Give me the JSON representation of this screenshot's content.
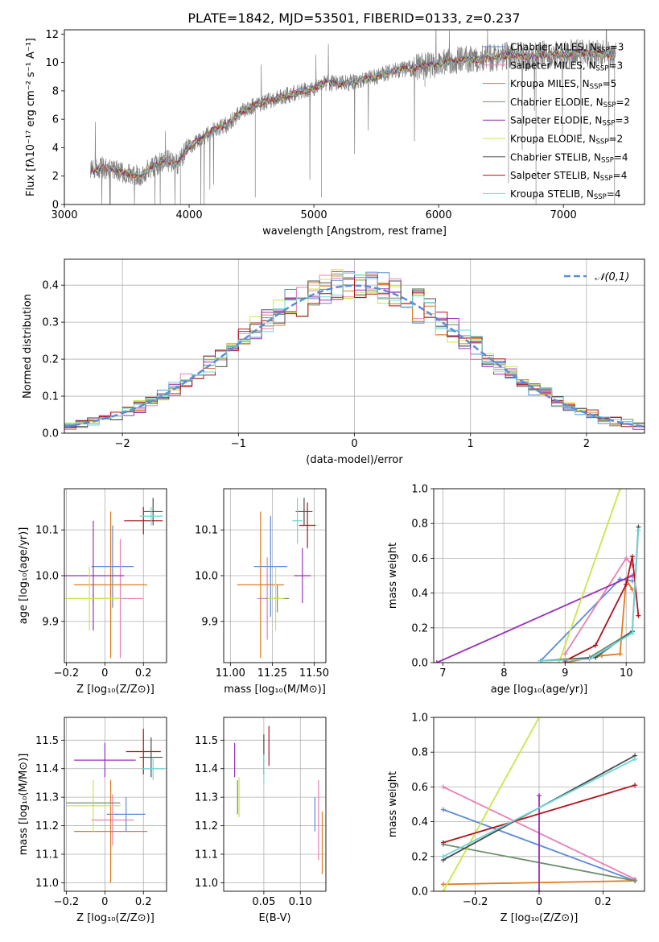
{
  "title": "PLATE=1842, MJD=53501, FIBERID=0133, z=0.237",
  "colors": {
    "chabrier_miles": "#5b8bd9",
    "salpeter_miles": "#e87fb4",
    "kroupa_miles": "#e07a1f",
    "chabrier_elodie": "#6f8f6f",
    "salpeter_elodie": "#9b30b8",
    "kroupa_elodie": "#c9e64a",
    "chabrier_stelib": "#4d4d4d",
    "salpeter_stelib": "#b0141d",
    "kroupa_stelib": "#6fd6d6",
    "data": "#808080",
    "normal": "#5b8bd9",
    "grid": "#b0b0b0"
  },
  "legend_entries": [
    {
      "label": "Chabrier MILES, N",
      "sub": "SSP",
      "suffix": "=3",
      "color_key": "chabrier_miles"
    },
    {
      "label": "Salpeter MILES, N",
      "sub": "SSP",
      "suffix": "=3",
      "color_key": "salpeter_miles"
    },
    {
      "label": "Kroupa MILES, N",
      "sub": "SSP",
      "suffix": "=5",
      "color_key": "kroupa_miles"
    },
    {
      "label": "Chabrier ELODIE, N",
      "sub": "SSP",
      "suffix": "=2",
      "color_key": "chabrier_elodie"
    },
    {
      "label": "Salpeter ELODIE, N",
      "sub": "SSP",
      "suffix": "=3",
      "color_key": "salpeter_elodie"
    },
    {
      "label": "Kroupa ELODIE, N",
      "sub": "SSP",
      "suffix": "=2",
      "color_key": "kroupa_elodie"
    },
    {
      "label": "Chabrier STELIB, N",
      "sub": "SSP",
      "suffix": "=4",
      "color_key": "chabrier_stelib"
    },
    {
      "label": "Salpeter STELIB, N",
      "sub": "SSP",
      "suffix": "=4",
      "color_key": "salpeter_stelib"
    },
    {
      "label": "Kroupa STELIB, N",
      "sub": "SSP",
      "suffix": "=4",
      "color_key": "kroupa_stelib"
    }
  ],
  "chart_data": [
    {
      "id": "spectrum",
      "type": "line",
      "xlabel": "wavelength [Angstrom, rest frame]",
      "ylabel": "Flux [fλ10⁻¹⁷ erg cm⁻² s⁻¹ A⁻¹]",
      "xlim": [
        3000,
        7650
      ],
      "ylim": [
        0,
        12.3
      ],
      "xticks": [
        3000,
        4000,
        5000,
        6000,
        7000
      ],
      "yticks": [
        0,
        2,
        4,
        6,
        8,
        10,
        12
      ],
      "legend": "right",
      "x": [
        3210,
        3300,
        3400,
        3500,
        3600,
        3700,
        3800,
        3900,
        4000,
        4100,
        4200,
        4300,
        4400,
        4500,
        4600,
        4700,
        4800,
        4900,
        5000,
        5100,
        5200,
        5300,
        5400,
        5500,
        5600,
        5700,
        5800,
        5900,
        6000,
        6100,
        6200,
        6300,
        6400,
        6500,
        6600,
        6700,
        6800,
        6900,
        7000,
        7100,
        7200,
        7300,
        7420
      ],
      "model_y": [
        2.3,
        2.6,
        2.5,
        2.2,
        2.0,
        2.6,
        3.2,
        2.8,
        4.1,
        4.6,
        5.3,
        5.6,
        6.4,
        6.9,
        7.2,
        7.5,
        7.7,
        8.0,
        8.2,
        8.6,
        8.5,
        8.6,
        8.8,
        9.0,
        9.3,
        9.5,
        9.6,
        9.8,
        9.9,
        10.1,
        10.2,
        10.2,
        10.3,
        10.4,
        10.6,
        10.4,
        10.5,
        10.6,
        10.5,
        10.7,
        10.6,
        10.6,
        10.5
      ]
    },
    {
      "id": "residuals",
      "type": "bar",
      "xlabel": "(data-model)/error",
      "ylabel": "Normed distribution",
      "xlim": [
        -2.5,
        2.5
      ],
      "ylim": [
        0,
        0.47
      ],
      "xticks": [
        -2,
        -1,
        0,
        1,
        2
      ],
      "yticks": [
        0.0,
        0.1,
        0.2,
        0.3,
        0.4
      ],
      "grid": true,
      "legend": "top-right",
      "normal_label": "𝒩(0,1)",
      "bin_width": 0.1
    },
    {
      "id": "age_vs_Z",
      "type": "scatter",
      "xlabel": "Z [log₁₀(Z/Z⊙)]",
      "ylabel": "age  [log₁₀(age/yr)]",
      "xlim": [
        -0.21,
        0.32
      ],
      "ylim": [
        9.81,
        10.19
      ],
      "xticks": [
        -0.2,
        0.0,
        0.2
      ],
      "yticks": [
        9.9,
        10.0,
        10.1
      ],
      "grid": true,
      "points": [
        {
          "key": "chabrier_miles",
          "x": 0.04,
          "y": 10.02,
          "ex": 0.11,
          "ey": 0.09
        },
        {
          "key": "salpeter_miles",
          "x": 0.08,
          "y": 9.95,
          "ex": 0.12,
          "ey": 0.13
        },
        {
          "key": "kroupa_miles",
          "x": 0.03,
          "y": 9.98,
          "ex": 0.19,
          "ey": 0.16
        },
        {
          "key": "chabrier_elodie",
          "x": -0.06,
          "y": 9.95,
          "ex": 0.14,
          "ey": 0.01
        },
        {
          "key": "salpeter_elodie",
          "x": -0.06,
          "y": 10.0,
          "ex": 0.16,
          "ey": 0.12
        },
        {
          "key": "kroupa_elodie",
          "x": -0.08,
          "y": 9.95,
          "ex": 0.16,
          "ey": 0.07
        },
        {
          "key": "chabrier_stelib",
          "x": 0.25,
          "y": 10.14,
          "ex": 0.05,
          "ey": 0.03
        },
        {
          "key": "salpeter_stelib",
          "x": 0.2,
          "y": 10.12,
          "ex": 0.1,
          "ey": 0.03
        },
        {
          "key": "kroupa_stelib",
          "x": 0.24,
          "y": 10.13,
          "ex": 0.06,
          "ey": 0.02
        }
      ]
    },
    {
      "id": "age_vs_mass",
      "type": "scatter",
      "xlabel": "mass [log₁₀(M/M⊙)]",
      "ylabel": "",
      "xlim": [
        10.96,
        11.57
      ],
      "ylim": [
        9.81,
        10.19
      ],
      "xticks": [
        11.0,
        11.25,
        11.5
      ],
      "yticks": [
        9.9,
        10.0,
        10.1
      ],
      "grid": true,
      "points": [
        {
          "key": "chabrier_miles",
          "x": 11.24,
          "y": 10.02,
          "ex": 0.1,
          "ey": 0.11
        },
        {
          "key": "salpeter_miles",
          "x": 11.22,
          "y": 9.95,
          "ex": 0.06,
          "ey": 0.09
        },
        {
          "key": "kroupa_miles",
          "x": 11.18,
          "y": 9.98,
          "ex": 0.14,
          "ey": 0.16
        },
        {
          "key": "chabrier_elodie",
          "x": 11.28,
          "y": 9.95,
          "ex": 0.07,
          "ey": 0.03
        },
        {
          "key": "salpeter_elodie",
          "x": 11.43,
          "y": 10.0,
          "ex": 0.05,
          "ey": 0.06
        },
        {
          "key": "kroupa_elodie",
          "x": 11.27,
          "y": 9.95,
          "ex": 0.05,
          "ey": 0.07
        },
        {
          "key": "chabrier_stelib",
          "x": 11.44,
          "y": 10.14,
          "ex": 0.05,
          "ey": 0.03
        },
        {
          "key": "salpeter_stelib",
          "x": 11.46,
          "y": 10.11,
          "ex": 0.05,
          "ey": 0.05
        },
        {
          "key": "kroupa_stelib",
          "x": 11.4,
          "y": 10.12,
          "ex": 0.03,
          "ey": 0.05
        }
      ]
    },
    {
      "id": "mass_weight_vs_age",
      "type": "line",
      "xlabel": "age  [log₁₀(age/yr)]",
      "ylabel": "mass weight",
      "xlim": [
        6.85,
        10.3
      ],
      "ylim": [
        0.0,
        1.0
      ],
      "xticks": [
        7,
        8,
        9,
        10
      ],
      "yticks": [
        0.0,
        0.2,
        0.4,
        0.6,
        0.8,
        1.0
      ],
      "grid": true,
      "series": [
        {
          "key": "chabrier_miles",
          "x": [
            8.6,
            9.9,
            10.1
          ],
          "y": [
            0.01,
            0.48,
            0.47
          ]
        },
        {
          "key": "salpeter_miles",
          "x": [
            9.0,
            10.0,
            10.1
          ],
          "y": [
            0.05,
            0.6,
            0.56
          ]
        },
        {
          "key": "kroupa_miles",
          "x": [
            9.0,
            9.6,
            9.9,
            10.0,
            10.1
          ],
          "y": [
            0.0,
            0.04,
            0.05,
            0.48,
            0.42
          ]
        },
        {
          "key": "chabrier_elodie",
          "x": [
            9.4,
            10.1
          ],
          "y": [
            0.03,
            0.18
          ]
        },
        {
          "key": "salpeter_elodie",
          "x": [
            6.9,
            10.1
          ],
          "y": [
            0.0,
            0.5
          ]
        },
        {
          "key": "kroupa_elodie",
          "x": [
            8.9,
            9.9
          ],
          "y": [
            0.0,
            1.0
          ]
        },
        {
          "key": "chabrier_stelib",
          "x": [
            8.6,
            9.5,
            10.1,
            10.2
          ],
          "y": [
            0.01,
            0.03,
            0.18,
            0.78
          ]
        },
        {
          "key": "salpeter_stelib",
          "x": [
            9.0,
            9.5,
            10.0,
            10.1,
            10.2
          ],
          "y": [
            0.01,
            0.1,
            0.45,
            0.61,
            0.27
          ]
        },
        {
          "key": "kroupa_stelib",
          "x": [
            8.6,
            9.4,
            10.1,
            10.2
          ],
          "y": [
            0.01,
            0.02,
            0.17,
            0.76
          ]
        }
      ]
    },
    {
      "id": "mass_vs_Z",
      "type": "scatter",
      "xlabel": "Z [log₁₀(Z/Z⊙)]",
      "ylabel": "mass [log₁₀(M/M⊙)]",
      "xlim": [
        -0.21,
        0.32
      ],
      "ylim": [
        10.97,
        11.58
      ],
      "xticks": [
        -0.2,
        0.0,
        0.2
      ],
      "yticks": [
        11.0,
        11.1,
        11.2,
        11.3,
        11.4,
        11.5
      ],
      "grid": true,
      "points": [
        {
          "key": "chabrier_miles",
          "x": 0.11,
          "y": 11.24,
          "ex": 0.1,
          "ey": 0.06
        },
        {
          "key": "salpeter_miles",
          "x": 0.04,
          "y": 11.22,
          "ex": 0.11,
          "ey": 0.09
        },
        {
          "key": "kroupa_miles",
          "x": 0.03,
          "y": 11.18,
          "ex": 0.19,
          "ey": 0.18
        },
        {
          "key": "chabrier_elodie",
          "x": -0.06,
          "y": 11.28,
          "ex": 0.14,
          "ey": 0.01
        },
        {
          "key": "salpeter_elodie",
          "x": 0.0,
          "y": 11.43,
          "ex": 0.16,
          "ey": 0.06
        },
        {
          "key": "kroupa_elodie",
          "x": -0.06,
          "y": 11.27,
          "ex": 0.14,
          "ey": 0.09
        },
        {
          "key": "chabrier_stelib",
          "x": 0.24,
          "y": 11.44,
          "ex": 0.06,
          "ey": 0.07
        },
        {
          "key": "salpeter_stelib",
          "x": 0.2,
          "y": 11.46,
          "ex": 0.09,
          "ey": 0.08
        },
        {
          "key": "kroupa_stelib",
          "x": 0.25,
          "y": 11.4,
          "ex": 0.06,
          "ey": 0.04
        }
      ]
    },
    {
      "id": "mass_vs_EBV",
      "type": "scatter",
      "xlabel": "E(B-V)",
      "ylabel": "",
      "xlim": [
        -0.005,
        0.135
      ],
      "ylim": [
        10.97,
        11.58
      ],
      "xticks": [
        0.05,
        0.1
      ],
      "yticks": [
        11.0,
        11.1,
        11.2,
        11.3,
        11.4,
        11.5
      ],
      "grid": true,
      "points": [
        {
          "key": "chabrier_miles",
          "x": 0.12,
          "y": 11.24,
          "ex": 0,
          "ey": 0.06
        },
        {
          "key": "salpeter_miles",
          "x": 0.125,
          "y": 11.22,
          "ex": 0,
          "ey": 0.14
        },
        {
          "key": "kroupa_miles",
          "x": 0.13,
          "y": 11.14,
          "ex": 0,
          "ey": 0.11
        },
        {
          "key": "chabrier_elodie",
          "x": 0.014,
          "y": 11.3,
          "ex": 0,
          "ey": 0.06
        },
        {
          "key": "salpeter_elodie",
          "x": 0.01,
          "y": 11.43,
          "ex": 0,
          "ey": 0.06
        },
        {
          "key": "kroupa_elodie",
          "x": 0.016,
          "y": 11.3,
          "ex": 0,
          "ey": 0.07
        },
        {
          "key": "chabrier_stelib",
          "x": 0.05,
          "y": 11.45,
          "ex": 0,
          "ey": 0.07
        },
        {
          "key": "salpeter_stelib",
          "x": 0.057,
          "y": 11.48,
          "ex": 0,
          "ey": 0.07
        },
        {
          "key": "kroupa_stelib",
          "x": 0.05,
          "y": 11.4,
          "ex": 0,
          "ey": 0.05
        }
      ]
    },
    {
      "id": "mass_weight_vs_Z",
      "type": "line",
      "xlabel": "Z [log₁₀(Z/Z⊙)]",
      "ylabel": "mass weight",
      "xlim": [
        -0.33,
        0.33
      ],
      "ylim": [
        0.0,
        1.0
      ],
      "xticks": [
        -0.2,
        0.0,
        0.2
      ],
      "yticks": [
        0.0,
        0.2,
        0.4,
        0.6,
        0.8,
        1.0
      ],
      "grid": true,
      "series": [
        {
          "key": "chabrier_miles",
          "x": [
            -0.3,
            0.3
          ],
          "y": [
            0.47,
            0.06
          ]
        },
        {
          "key": "salpeter_miles",
          "x": [
            -0.3,
            0.3
          ],
          "y": [
            0.6,
            0.07
          ]
        },
        {
          "key": "kroupa_miles",
          "x": [
            -0.3,
            0.3
          ],
          "y": [
            0.04,
            0.06
          ]
        },
        {
          "key": "chabrier_elodie",
          "x": [
            -0.3,
            0.3
          ],
          "y": [
            0.27,
            0.06
          ]
        },
        {
          "key": "salpeter_elodie",
          "x": [
            0.0,
            0.0
          ],
          "y": [
            0.0,
            0.55
          ]
        },
        {
          "key": "kroupa_elodie",
          "x": [
            -0.3,
            0.0
          ],
          "y": [
            0.0,
            1.0
          ]
        },
        {
          "key": "chabrier_stelib",
          "x": [
            -0.3,
            0.3
          ],
          "y": [
            0.18,
            0.78
          ]
        },
        {
          "key": "salpeter_stelib",
          "x": [
            -0.3,
            0.3
          ],
          "y": [
            0.28,
            0.61
          ]
        },
        {
          "key": "kroupa_stelib",
          "x": [
            -0.3,
            0.3
          ],
          "y": [
            0.2,
            0.76
          ]
        }
      ]
    }
  ]
}
